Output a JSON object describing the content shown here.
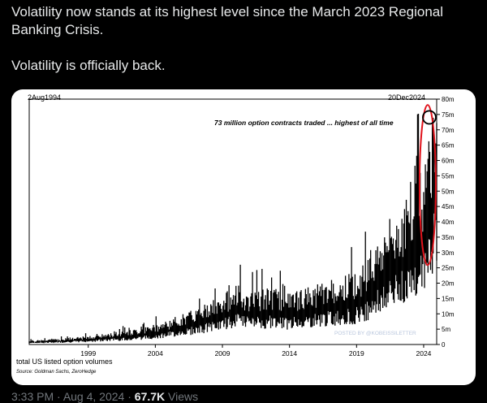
{
  "tweet": {
    "line1": "Volatility now stands at its highest level since the March 2023 Regional Banking Crisis.",
    "line2": "Volatility is officially back.",
    "time": "3:33 PM",
    "separator": " · ",
    "date": "Aug 4, 2024",
    "views_count": "67.7K",
    "views_label": " Views"
  },
  "chart_data": {
    "type": "bar",
    "start_label": "2Aug1994",
    "end_label": "20Dec2024",
    "annotation": "73 million option contracts traded ... highest of all time",
    "xlabel": "total US listed option volumes",
    "source": "Source: Goldman Sachs, ZeroHedge",
    "watermark": "POSTED BY @KOBEISSILETTER",
    "x_ticks": [
      "1999",
      "2004",
      "2009",
      "2014",
      "2019",
      "2024"
    ],
    "y_ticks": [
      "0",
      "5m",
      "10m",
      "15m",
      "20m",
      "25m",
      "30m",
      "35m",
      "40m",
      "45m",
      "50m",
      "55m",
      "60m",
      "65m",
      "70m",
      "75m",
      "80m"
    ],
    "ylim": [
      0,
      80
    ],
    "y_unit": "million contracts",
    "highlight_color": "#e0121b",
    "series": [
      {
        "year_span": [
          1994.6,
          2024.97
        ],
        "values": [
          1.0,
          1.2,
          1.4,
          1.6,
          1.9,
          2.2,
          2.6,
          3.0,
          3.5,
          4.0,
          4.6,
          5.5,
          6.5,
          7.8,
          9.0,
          10.5,
          12.0,
          14.0,
          15.5,
          14.0,
          14.5,
          15.0,
          13.5,
          14.5,
          15.0,
          16.5,
          17.0,
          18.0,
          19.0,
          22.0,
          28.0,
          33.0,
          37.0,
          42.0,
          48.0,
          73.0
        ]
      }
    ],
    "peak_value": 73
  }
}
